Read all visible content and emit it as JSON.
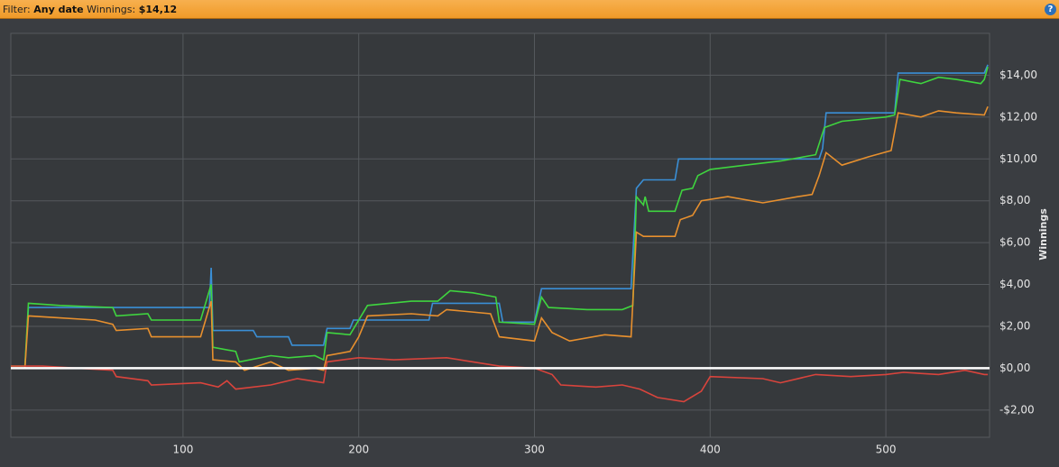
{
  "header": {
    "filter_label": "Filter:",
    "filter_value": "Any date",
    "winnings_label": "Winnings:",
    "winnings_value": "$14,12"
  },
  "chart_data": {
    "type": "line",
    "y_axis_label": "Winnings",
    "grid": true,
    "xlim": [
      2,
      559
    ],
    "xticks": [
      100,
      200,
      300,
      400,
      500
    ],
    "ylim": [
      -3.3,
      16
    ],
    "yticks": [
      {
        "value": -2,
        "label": "-$2,00"
      },
      {
        "value": 0,
        "label": "$0,00"
      },
      {
        "value": 2,
        "label": "$2,00"
      },
      {
        "value": 4,
        "label": "$4,00"
      },
      {
        "value": 6,
        "label": "$6,00"
      },
      {
        "value": 8,
        "label": "$8,00"
      },
      {
        "value": 10,
        "label": "$10,00"
      },
      {
        "value": 12,
        "label": "$12,00"
      },
      {
        "value": 14,
        "label": "$14,00"
      }
    ],
    "series": [
      {
        "color": "#3a8fd6",
        "x": [
          2,
          10,
          12,
          115,
          116,
          117,
          140,
          142,
          160,
          162,
          180,
          182,
          195,
          197,
          240,
          242,
          280,
          282,
          300,
          304,
          355,
          358,
          362,
          380,
          382,
          462,
          464,
          466,
          505,
          507,
          556,
          558
        ],
        "values": [
          0,
          0,
          2.9,
          2.9,
          4.8,
          1.8,
          1.8,
          1.5,
          1.5,
          1.1,
          1.1,
          1.9,
          1.9,
          2.3,
          2.3,
          3.1,
          3.1,
          2.2,
          2.2,
          3.8,
          3.8,
          8.6,
          9.0,
          9.0,
          10.0,
          10.0,
          10.5,
          12.2,
          12.2,
          14.1,
          14.1,
          14.5
        ]
      },
      {
        "color": "#3fd43f",
        "x": [
          2,
          10,
          12,
          30,
          60,
          62,
          80,
          82,
          110,
          116,
          117,
          130,
          132,
          150,
          160,
          175,
          180,
          182,
          195,
          205,
          230,
          245,
          252,
          265,
          278,
          280,
          300,
          304,
          308,
          330,
          350,
          356,
          358,
          362,
          363,
          365,
          380,
          384,
          390,
          393,
          400,
          420,
          440,
          460,
          465,
          475,
          500,
          505,
          508,
          520,
          530,
          540,
          554,
          556,
          558
        ],
        "values": [
          0.1,
          0.1,
          3.1,
          3.0,
          2.9,
          2.5,
          2.6,
          2.3,
          2.3,
          4.0,
          1.0,
          0.8,
          0.3,
          0.6,
          0.5,
          0.6,
          0.4,
          1.7,
          1.6,
          3.0,
          3.2,
          3.2,
          3.7,
          3.6,
          3.4,
          2.2,
          2.1,
          3.4,
          2.9,
          2.8,
          2.8,
          3.0,
          8.2,
          7.8,
          8.2,
          7.5,
          7.5,
          8.5,
          8.6,
          9.2,
          9.5,
          9.7,
          9.9,
          10.2,
          11.5,
          11.8,
          12.0,
          12.1,
          13.8,
          13.6,
          13.9,
          13.8,
          13.6,
          13.8,
          14.4
        ]
      },
      {
        "color": "#e8902e",
        "x": [
          2,
          10,
          12,
          50,
          60,
          62,
          80,
          82,
          110,
          116,
          117,
          130,
          135,
          150,
          160,
          175,
          180,
          182,
          195,
          200,
          205,
          230,
          245,
          250,
          275,
          280,
          300,
          304,
          310,
          320,
          340,
          355,
          358,
          362,
          380,
          383,
          390,
          395,
          410,
          430,
          450,
          458,
          462,
          466,
          475,
          490,
          503,
          507,
          520,
          530,
          540,
          556,
          558
        ],
        "values": [
          0,
          0,
          2.5,
          2.3,
          2.1,
          1.8,
          1.9,
          1.5,
          1.5,
          3.2,
          0.4,
          0.3,
          -0.1,
          0.3,
          -0.1,
          0,
          -0.1,
          0.6,
          0.8,
          1.5,
          2.5,
          2.6,
          2.5,
          2.8,
          2.6,
          1.5,
          1.3,
          2.4,
          1.7,
          1.3,
          1.6,
          1.5,
          6.5,
          6.3,
          6.3,
          7.1,
          7.3,
          8.0,
          8.2,
          7.9,
          8.2,
          8.3,
          9.2,
          10.3,
          9.7,
          10.1,
          10.4,
          12.2,
          12.0,
          12.3,
          12.2,
          12.1,
          12.5
        ]
      },
      {
        "color": "#d9443c",
        "x": [
          2,
          20,
          40,
          60,
          62,
          80,
          82,
          110,
          120,
          125,
          130,
          150,
          165,
          180,
          182,
          200,
          220,
          250,
          265,
          280,
          300,
          310,
          315,
          335,
          350,
          360,
          370,
          385,
          395,
          400,
          430,
          440,
          460,
          480,
          500,
          510,
          530,
          545,
          556,
          558
        ],
        "values": [
          0.1,
          0.1,
          0,
          -0.1,
          -0.4,
          -0.6,
          -0.8,
          -0.7,
          -0.9,
          -0.6,
          -1.0,
          -0.8,
          -0.5,
          -0.7,
          0.3,
          0.5,
          0.4,
          0.5,
          0.3,
          0.1,
          0,
          -0.3,
          -0.8,
          -0.9,
          -0.8,
          -1.0,
          -1.4,
          -1.6,
          -1.1,
          -0.4,
          -0.5,
          -0.7,
          -0.3,
          -0.4,
          -0.3,
          -0.2,
          -0.3,
          -0.1,
          -0.3,
          -0.3
        ]
      }
    ]
  }
}
